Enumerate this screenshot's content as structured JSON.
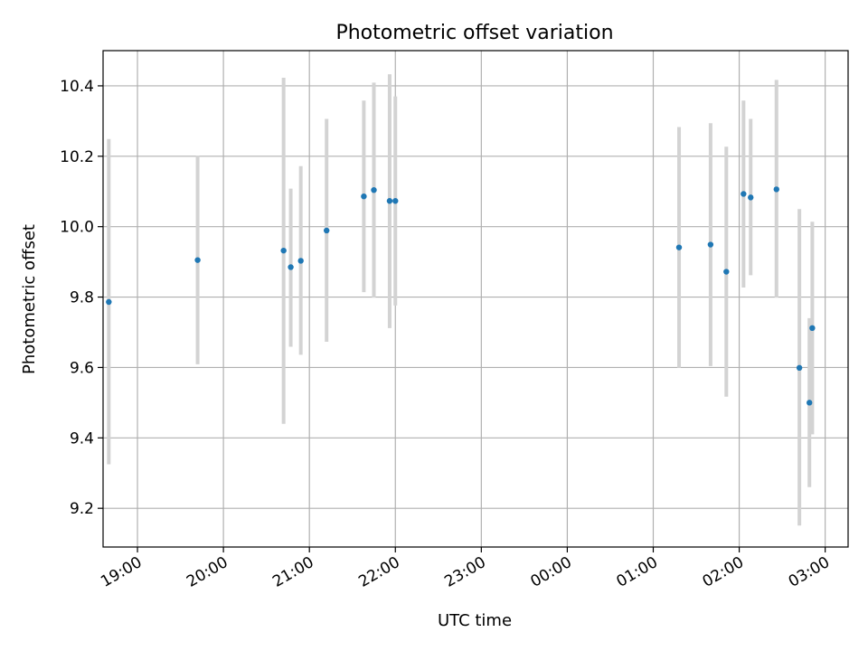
{
  "chart_data": {
    "type": "scatter",
    "title": "Photometric offset variation",
    "xlabel": "UTC time",
    "ylabel": "Photometric offset",
    "x_axis_type": "time",
    "x_tick_labels": [
      "19:00",
      "20:00",
      "21:00",
      "22:00",
      "23:00",
      "00:00",
      "01:00",
      "02:00",
      "03:00"
    ],
    "x_tick_times": [
      "19:00",
      "20:00",
      "21:00",
      "22:00",
      "23:00",
      "00:00",
      "01:00",
      "02:00",
      "03:00"
    ],
    "xlim": [
      "18:36",
      "03:16"
    ],
    "ylim": [
      9.09,
      10.5
    ],
    "y_ticks": [
      9.2,
      9.4,
      9.6,
      9.8,
      10.0,
      10.2,
      10.4
    ],
    "y_tick_labels": [
      "9.2",
      "9.4",
      "9.6",
      "9.8",
      "10.0",
      "10.2",
      "10.4"
    ],
    "grid": true,
    "marker_color": "#1f77b4",
    "errorbar_color": "#d3d3d3",
    "points": [
      {
        "t": "18:40",
        "y": 9.786,
        "low": 9.325,
        "high": 10.249
      },
      {
        "t": "19:42",
        "y": 9.905,
        "low": 9.609,
        "high": 10.201
      },
      {
        "t": "20:42",
        "y": 9.932,
        "low": 9.44,
        "high": 10.423
      },
      {
        "t": "20:47",
        "y": 9.885,
        "low": 9.659,
        "high": 10.108
      },
      {
        "t": "20:54",
        "y": 9.903,
        "low": 9.636,
        "high": 10.172
      },
      {
        "t": "21:12",
        "y": 9.989,
        "low": 9.673,
        "high": 10.306
      },
      {
        "t": "21:38",
        "y": 10.086,
        "low": 9.814,
        "high": 10.358
      },
      {
        "t": "21:45",
        "y": 10.104,
        "low": 9.799,
        "high": 10.409
      },
      {
        "t": "21:56",
        "y": 10.073,
        "low": 9.712,
        "high": 10.433
      },
      {
        "t": "22:00",
        "y": 10.073,
        "low": 9.776,
        "high": 10.37
      },
      {
        "t": "01:18",
        "y": 9.941,
        "low": 9.599,
        "high": 10.283
      },
      {
        "t": "01:40",
        "y": 9.949,
        "low": 9.604,
        "high": 10.294
      },
      {
        "t": "01:51",
        "y": 9.872,
        "low": 9.517,
        "high": 10.227
      },
      {
        "t": "02:03",
        "y": 10.093,
        "low": 9.827,
        "high": 10.358
      },
      {
        "t": "02:08",
        "y": 10.083,
        "low": 9.862,
        "high": 10.306
      },
      {
        "t": "02:26",
        "y": 10.106,
        "low": 9.799,
        "high": 10.417
      },
      {
        "t": "02:42",
        "y": 9.599,
        "low": 9.151,
        "high": 10.05
      },
      {
        "t": "02:49",
        "y": 9.5,
        "low": 9.26,
        "high": 9.74
      },
      {
        "t": "02:51",
        "y": 9.712,
        "low": 9.41,
        "high": 10.014
      }
    ]
  }
}
